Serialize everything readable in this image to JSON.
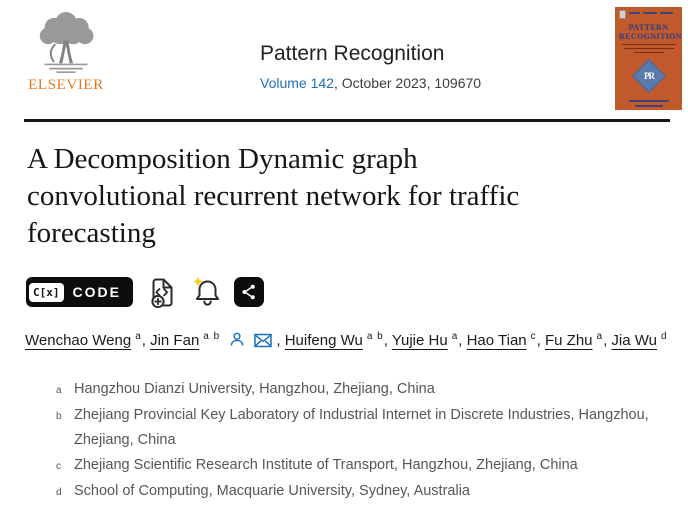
{
  "colors": {
    "elsevier_orange": "#e87722",
    "link_blue": "#1d70b8",
    "icon_blue": "#1770c2",
    "cover_orange": "#c05a2c",
    "cover_navy": "#2c3c85",
    "cover_diamond": "#5a79ad",
    "badge_black": "#0d0d0d",
    "sparkle_yellow": "#ffc61a"
  },
  "header": {
    "elsevier_wordmark": "ELSEVIER",
    "journal_title": "Pattern Recognition",
    "volume_link": "Volume 142",
    "issue_suffix": ", October 2023, 109670",
    "cover": {
      "line1": "PATTERN",
      "line2": "RECOGNITION",
      "monogram": "PR"
    }
  },
  "article": {
    "title": "A Decomposition Dynamic graph convolutional recurrent network for traffic forecasting",
    "title_lines": {
      "l1": "A Decomposition Dynamic graph",
      "l2": "convolutional recurrent network for traffic",
      "l3": "forecasting"
    },
    "toolbar": {
      "code_box": "C[x]",
      "code_label": "CODE",
      "icons": [
        "add-code",
        "alert-bell",
        "share"
      ]
    },
    "authors": [
      {
        "name": "Wenchao Weng",
        "sup": "a",
        "sep": ", "
      },
      {
        "name": "Jin Fan",
        "sup": "a b",
        "corresponding": true,
        "sep": " , "
      },
      {
        "name": "Huifeng Wu",
        "sup": "a b",
        "sep": ", "
      },
      {
        "name": "Yujie Hu",
        "sup": "a",
        "sep": ", "
      },
      {
        "name": "Hao Tian",
        "sup": "c",
        "sep": ", "
      },
      {
        "name": "Fu Zhu",
        "sup": "a",
        "sep": ", "
      },
      {
        "name": "Jia Wu",
        "sup": "d",
        "sep": ""
      }
    ],
    "affiliations": [
      {
        "sup": "a",
        "text": "Hangzhou Dianzi University, Hangzhou, Zhejiang, China"
      },
      {
        "sup": "b",
        "text": "Zhejiang Provincial Key Laboratory of Industrial Internet in Discrete Industries, Hangzhou, Zhejiang, China"
      },
      {
        "sup": "c",
        "text": "Zhejiang Scientific Research Institute of Transport, Hangzhou, Zhejiang, China"
      },
      {
        "sup": "d",
        "text": "School of Computing, Macquarie University, Sydney, Australia"
      }
    ]
  }
}
